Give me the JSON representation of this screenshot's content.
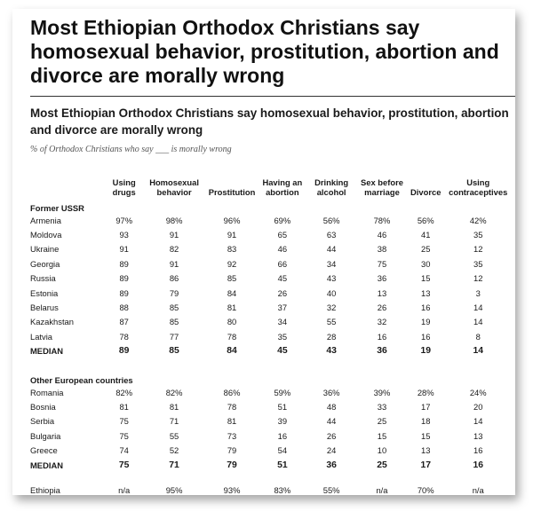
{
  "title": "Most Ethiopian Orthodox Christians say homosexual behavior, prostitution, abortion and divorce are morally wrong",
  "subtitle": "Most Ethiopian Orthodox Christians say homosexual behavior, prostitution, abortion and divorce are morally wrong",
  "note": "% of Orthodox Christians who say ___ is morally wrong",
  "chart_data": {
    "type": "table",
    "columns": [
      "Using drugs",
      "Homosexual behavior",
      "Prostitution",
      "Having an abortion",
      "Drinking alcohol",
      "Sex before marriage",
      "Divorce",
      "Using contraceptives"
    ],
    "groups": [
      {
        "name": "Former USSR",
        "rows": [
          {
            "label": "Armenia",
            "values": [
              "97%",
              "98%",
              "96%",
              "69%",
              "56%",
              "78%",
              "56%",
              "42%"
            ]
          },
          {
            "label": "Moldova",
            "values": [
              "93",
              "91",
              "91",
              "65",
              "63",
              "46",
              "41",
              "35"
            ]
          },
          {
            "label": "Ukraine",
            "values": [
              "91",
              "82",
              "83",
              "46",
              "44",
              "38",
              "25",
              "12"
            ]
          },
          {
            "label": "Georgia",
            "values": [
              "89",
              "91",
              "92",
              "66",
              "34",
              "75",
              "30",
              "35"
            ]
          },
          {
            "label": "Russia",
            "values": [
              "89",
              "86",
              "85",
              "45",
              "43",
              "36",
              "15",
              "12"
            ]
          },
          {
            "label": "Estonia",
            "values": [
              "89",
              "79",
              "84",
              "26",
              "40",
              "13",
              "13",
              "3"
            ]
          },
          {
            "label": "Belarus",
            "values": [
              "88",
              "85",
              "81",
              "37",
              "32",
              "26",
              "16",
              "14"
            ]
          },
          {
            "label": "Kazakhstan",
            "values": [
              "87",
              "85",
              "80",
              "34",
              "55",
              "32",
              "19",
              "14"
            ]
          },
          {
            "label": "Latvia",
            "values": [
              "78",
              "77",
              "78",
              "35",
              "28",
              "16",
              "16",
              "8"
            ]
          }
        ],
        "median": {
          "label": "MEDIAN",
          "values": [
            "89",
            "85",
            "84",
            "45",
            "43",
            "36",
            "19",
            "14"
          ]
        }
      },
      {
        "name": "Other European countries",
        "rows": [
          {
            "label": "Romania",
            "values": [
              "82%",
              "82%",
              "86%",
              "59%",
              "36%",
              "39%",
              "28%",
              "24%"
            ]
          },
          {
            "label": "Bosnia",
            "values": [
              "81",
              "81",
              "78",
              "51",
              "48",
              "33",
              "17",
              "20"
            ]
          },
          {
            "label": "Serbia",
            "values": [
              "75",
              "71",
              "81",
              "39",
              "44",
              "25",
              "18",
              "14"
            ]
          },
          {
            "label": "Bulgaria",
            "values": [
              "75",
              "55",
              "73",
              "16",
              "26",
              "15",
              "15",
              "13"
            ]
          },
          {
            "label": "Greece",
            "values": [
              "74",
              "52",
              "79",
              "54",
              "24",
              "10",
              "13",
              "16"
            ]
          }
        ],
        "median": {
          "label": "MEDIAN",
          "values": [
            "75",
            "71",
            "79",
            "51",
            "36",
            "25",
            "17",
            "16"
          ]
        }
      }
    ],
    "extra_rows": [
      {
        "label": "Ethiopia",
        "values": [
          "n/a",
          "95%",
          "93%",
          "83%",
          "55%",
          "n/a",
          "70%",
          "n/a"
        ]
      }
    ]
  }
}
